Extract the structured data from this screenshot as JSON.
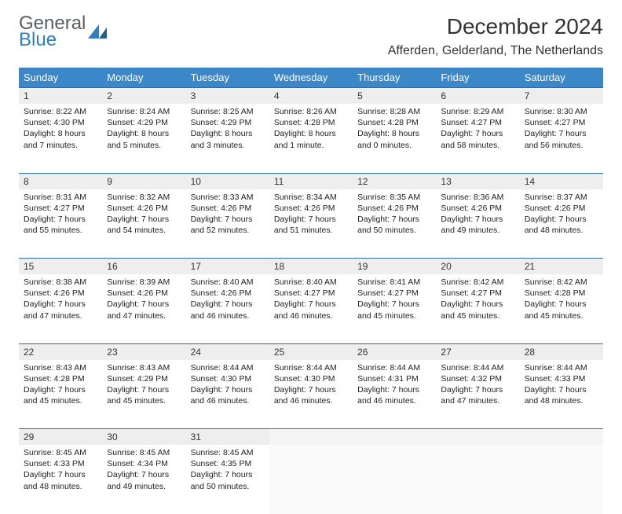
{
  "brand": {
    "text_top": "General",
    "text_bottom": "Blue",
    "text_top_color": "#5a5f64",
    "text_bottom_color": "#2f7fc2",
    "mark_color": "#2f7fc2"
  },
  "header": {
    "title": "December 2024",
    "subtitle": "Afferden, Gelderland, The Netherlands",
    "title_color": "#333333",
    "title_fontsize": 28,
    "subtitle_fontsize": 16
  },
  "calendar": {
    "columns": [
      "Sunday",
      "Monday",
      "Tuesday",
      "Wednesday",
      "Thursday",
      "Friday",
      "Saturday"
    ],
    "header_bg": "#3b87c8",
    "header_text_color": "#ffffff",
    "daynum_bg": "#eeeeee",
    "row_divider_color": "#2f6ca3",
    "cell_bg": "#ffffff",
    "text_color": "#222222",
    "fontsize_daynum": 12,
    "fontsize_body": 10.5,
    "days": [
      {
        "n": 1,
        "sunrise": "8:22 AM",
        "sunset": "4:30 PM",
        "daylight": "8 hours and 7 minutes."
      },
      {
        "n": 2,
        "sunrise": "8:24 AM",
        "sunset": "4:29 PM",
        "daylight": "8 hours and 5 minutes."
      },
      {
        "n": 3,
        "sunrise": "8:25 AM",
        "sunset": "4:29 PM",
        "daylight": "8 hours and 3 minutes."
      },
      {
        "n": 4,
        "sunrise": "8:26 AM",
        "sunset": "4:28 PM",
        "daylight": "8 hours and 1 minute."
      },
      {
        "n": 5,
        "sunrise": "8:28 AM",
        "sunset": "4:28 PM",
        "daylight": "8 hours and 0 minutes."
      },
      {
        "n": 6,
        "sunrise": "8:29 AM",
        "sunset": "4:27 PM",
        "daylight": "7 hours and 58 minutes."
      },
      {
        "n": 7,
        "sunrise": "8:30 AM",
        "sunset": "4:27 PM",
        "daylight": "7 hours and 56 minutes."
      },
      {
        "n": 8,
        "sunrise": "8:31 AM",
        "sunset": "4:27 PM",
        "daylight": "7 hours and 55 minutes."
      },
      {
        "n": 9,
        "sunrise": "8:32 AM",
        "sunset": "4:26 PM",
        "daylight": "7 hours and 54 minutes."
      },
      {
        "n": 10,
        "sunrise": "8:33 AM",
        "sunset": "4:26 PM",
        "daylight": "7 hours and 52 minutes."
      },
      {
        "n": 11,
        "sunrise": "8:34 AM",
        "sunset": "4:26 PM",
        "daylight": "7 hours and 51 minutes."
      },
      {
        "n": 12,
        "sunrise": "8:35 AM",
        "sunset": "4:26 PM",
        "daylight": "7 hours and 50 minutes."
      },
      {
        "n": 13,
        "sunrise": "8:36 AM",
        "sunset": "4:26 PM",
        "daylight": "7 hours and 49 minutes."
      },
      {
        "n": 14,
        "sunrise": "8:37 AM",
        "sunset": "4:26 PM",
        "daylight": "7 hours and 48 minutes."
      },
      {
        "n": 15,
        "sunrise": "8:38 AM",
        "sunset": "4:26 PM",
        "daylight": "7 hours and 47 minutes."
      },
      {
        "n": 16,
        "sunrise": "8:39 AM",
        "sunset": "4:26 PM",
        "daylight": "7 hours and 47 minutes."
      },
      {
        "n": 17,
        "sunrise": "8:40 AM",
        "sunset": "4:26 PM",
        "daylight": "7 hours and 46 minutes."
      },
      {
        "n": 18,
        "sunrise": "8:40 AM",
        "sunset": "4:27 PM",
        "daylight": "7 hours and 46 minutes."
      },
      {
        "n": 19,
        "sunrise": "8:41 AM",
        "sunset": "4:27 PM",
        "daylight": "7 hours and 45 minutes."
      },
      {
        "n": 20,
        "sunrise": "8:42 AM",
        "sunset": "4:27 PM",
        "daylight": "7 hours and 45 minutes."
      },
      {
        "n": 21,
        "sunrise": "8:42 AM",
        "sunset": "4:28 PM",
        "daylight": "7 hours and 45 minutes."
      },
      {
        "n": 22,
        "sunrise": "8:43 AM",
        "sunset": "4:28 PM",
        "daylight": "7 hours and 45 minutes."
      },
      {
        "n": 23,
        "sunrise": "8:43 AM",
        "sunset": "4:29 PM",
        "daylight": "7 hours and 45 minutes."
      },
      {
        "n": 24,
        "sunrise": "8:44 AM",
        "sunset": "4:30 PM",
        "daylight": "7 hours and 46 minutes."
      },
      {
        "n": 25,
        "sunrise": "8:44 AM",
        "sunset": "4:30 PM",
        "daylight": "7 hours and 46 minutes."
      },
      {
        "n": 26,
        "sunrise": "8:44 AM",
        "sunset": "4:31 PM",
        "daylight": "7 hours and 46 minutes."
      },
      {
        "n": 27,
        "sunrise": "8:44 AM",
        "sunset": "4:32 PM",
        "daylight": "7 hours and 47 minutes."
      },
      {
        "n": 28,
        "sunrise": "8:44 AM",
        "sunset": "4:33 PM",
        "daylight": "7 hours and 48 minutes."
      },
      {
        "n": 29,
        "sunrise": "8:45 AM",
        "sunset": "4:33 PM",
        "daylight": "7 hours and 48 minutes."
      },
      {
        "n": 30,
        "sunrise": "8:45 AM",
        "sunset": "4:34 PM",
        "daylight": "7 hours and 49 minutes."
      },
      {
        "n": 31,
        "sunrise": "8:45 AM",
        "sunset": "4:35 PM",
        "daylight": "7 hours and 50 minutes."
      }
    ],
    "first_weekday_index": 0,
    "labels": {
      "sunrise_prefix": "Sunrise: ",
      "sunset_prefix": "Sunset: ",
      "daylight_prefix": "Daylight: "
    }
  }
}
